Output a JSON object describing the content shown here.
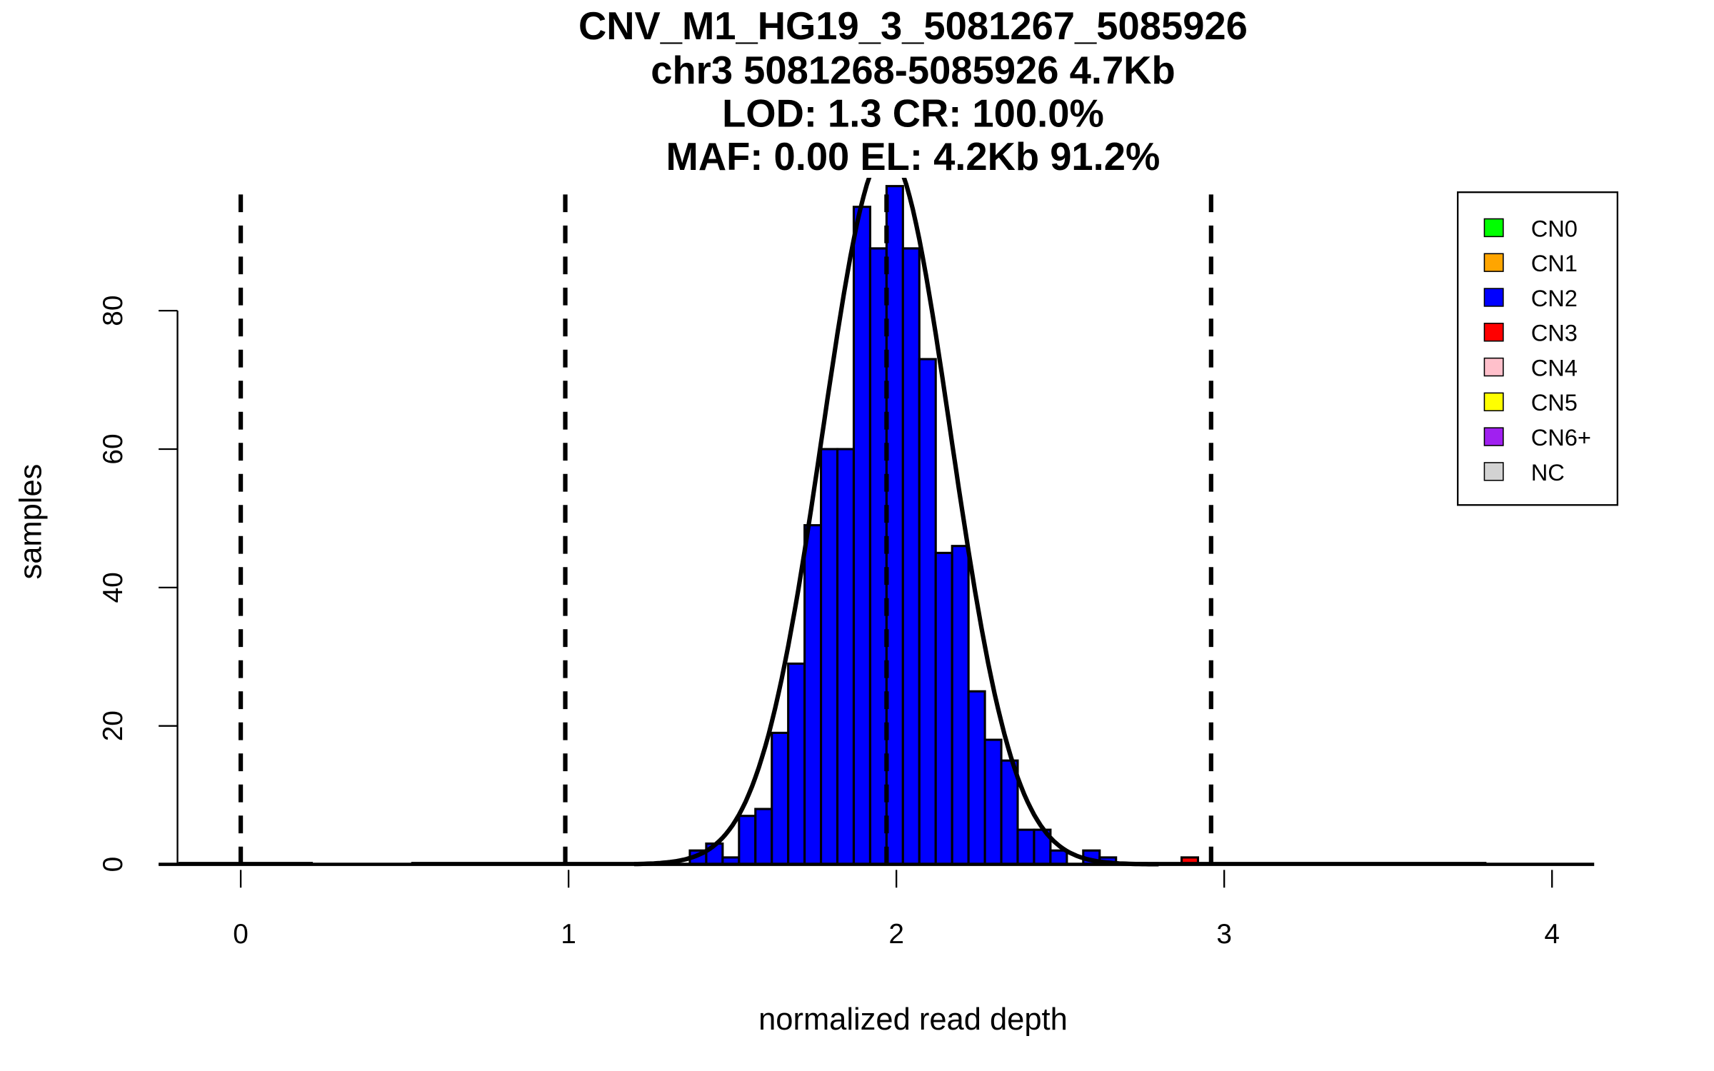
{
  "chart_data": {
    "type": "bar",
    "title_lines": [
      "CNV_M1_HG19_3_5081267_5085926",
      "chr3 5081268-5085926 4.7Kb",
      "LOD: 1.3 CR: 100.0%",
      "MAF: 0.00 EL: 4.2Kb 91.2%"
    ],
    "xlabel": "normalized read depth",
    "ylabel": "samples",
    "xlim": [
      -0.2,
      4.1
    ],
    "ylim": [
      0,
      99
    ],
    "xticks": [
      "0",
      "1",
      "2",
      "3",
      "4"
    ],
    "yticks": [
      "0",
      "20",
      "40",
      "60",
      "80"
    ],
    "bin_width": 0.05,
    "series": [
      {
        "name": "CN2",
        "color": "#0000FF",
        "bin_start": 1.37,
        "values": [
          2,
          3,
          1,
          7,
          8,
          19,
          29,
          49,
          60,
          60,
          95,
          89,
          98,
          89,
          73,
          45,
          46,
          25,
          18,
          15,
          5,
          5,
          2,
          0,
          2,
          1
        ]
      },
      {
        "name": "CN3",
        "color": "#FF0000",
        "bin_start": 2.87,
        "values": [
          1
        ]
      }
    ],
    "fit_curve": {
      "mean": 1.97,
      "sd": 0.195,
      "peak": 103
    },
    "cutoffs": [
      0.0,
      0.99,
      1.97,
      2.96
    ],
    "legend": {
      "placement": "top-right",
      "items": [
        {
          "label": "CN0",
          "color": "#00FF00"
        },
        {
          "label": "CN1",
          "color": "#FFA500"
        },
        {
          "label": "CN2",
          "color": "#0000FF"
        },
        {
          "label": "CN3",
          "color": "#FF0000"
        },
        {
          "label": "CN4",
          "color": "#FFC0CB"
        },
        {
          "label": "CN5",
          "color": "#FFFF00"
        },
        {
          "label": "CN6+",
          "color": "#A020F0"
        },
        {
          "label": "NC",
          "color": "#D3D3D3"
        }
      ]
    }
  }
}
